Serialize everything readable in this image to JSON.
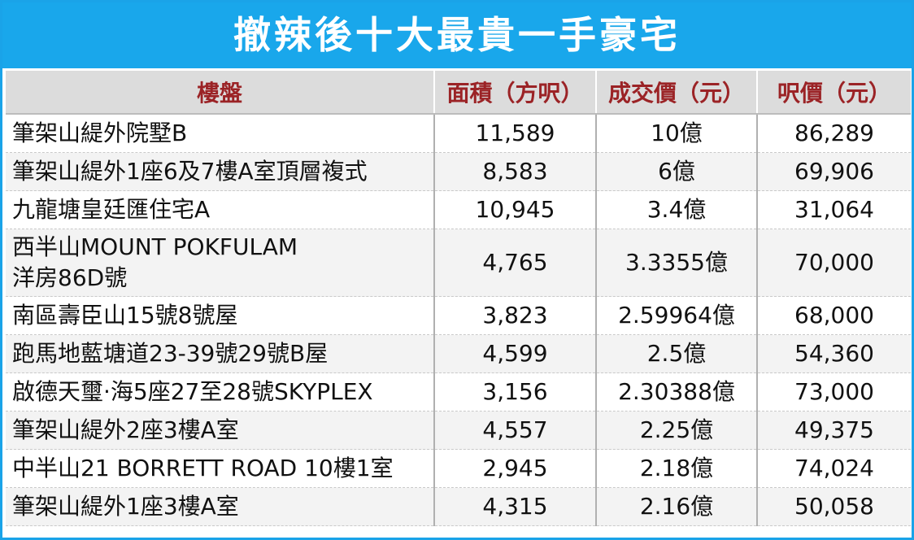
{
  "title": "撤辣後十大最貴一手豪宅",
  "headers": [
    "樓盤",
    "面積（方呎）",
    "成交價（元）",
    "呎價（元）"
  ],
  "rows": [
    {
      "name": "筆架山緹外院墅B",
      "area": "11,589",
      "price": "10億",
      "psf": "86,289"
    },
    {
      "name": "筆架山緹外1座6及7樓A室頂層複式",
      "area": "8,583",
      "price": "6億",
      "psf": "69,906"
    },
    {
      "name": "九龍塘皇廷匯住宅A",
      "area": "10,945",
      "price": "3.4億",
      "psf": "31,064"
    },
    {
      "name_line1": "西半山MOUNT POKFULAM",
      "name_line2": "洋房86D號",
      "area": "4,765",
      "price": "3.3355億",
      "psf": "70,000"
    },
    {
      "name": "南區壽臣山15號8號屋",
      "area": "3,823",
      "price": "2.59964億",
      "psf": "68,000"
    },
    {
      "name": "跑馬地藍塘道23-39號29號B屋",
      "area": "4,599",
      "price": "2.5億",
      "psf": "54,360"
    },
    {
      "name": "啟德天璽·海5座27至28號SKYPLEX",
      "area": "3,156",
      "price": "2.30388億",
      "psf": "73,000"
    },
    {
      "name": "筆架山緹外2座3樓A室",
      "area": "4,557",
      "price": "2.25億",
      "psf": "49,375"
    },
    {
      "name": "中半山21 BORRETT ROAD 10樓1室",
      "area": "2,945",
      "price": "2.18億",
      "psf": "74,024"
    },
    {
      "name": "筆架山緹外1座3樓A室",
      "area": "4,315",
      "price": "2.16億",
      "psf": "50,058"
    }
  ],
  "colors": {
    "title_bg": "#19a7eb",
    "header_bg": "#dcdcdc",
    "header_text": "#9b2326",
    "border": "#1aa3e8"
  }
}
